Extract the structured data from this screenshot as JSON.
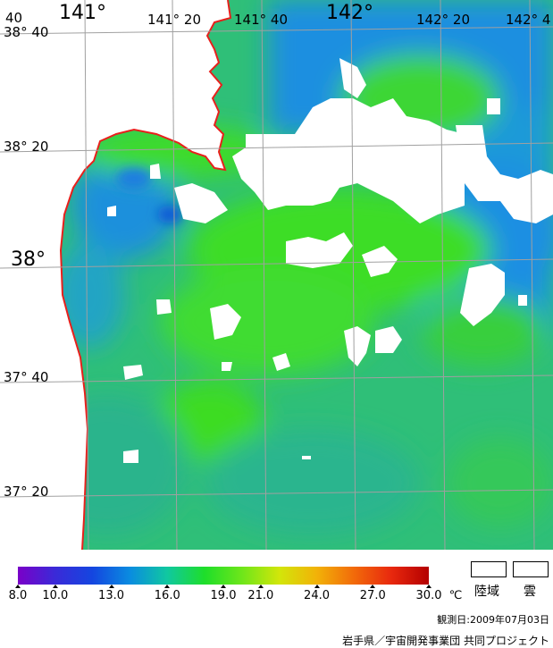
{
  "map": {
    "lat_labels": [
      {
        "text": "38° 40",
        "class": "lbl-small"
      },
      {
        "text": "38° 20",
        "class": "lbl-small"
      },
      {
        "text": "38°",
        "class": "lbl-big"
      },
      {
        "text": "37° 40",
        "class": "lbl-small"
      },
      {
        "text": "37° 20",
        "class": "lbl-small"
      }
    ],
    "lon_labels": [
      {
        "text": "40",
        "class": "lbl-small"
      },
      {
        "text": "141°",
        "class": "lbl-big"
      },
      {
        "text": "141° 20",
        "class": "lbl-small"
      },
      {
        "text": "141° 40",
        "class": "lbl-small"
      },
      {
        "text": "142°",
        "class": "lbl-big"
      },
      {
        "text": "142° 20",
        "class": "lbl-small"
      },
      {
        "text": "142° 4",
        "class": "lbl-small"
      }
    ],
    "coast_color": "#e8201c",
    "cloud_color": "#ffffff",
    "grid_color": "#a0a0a0"
  },
  "legend": {
    "ticks": [
      "8.0",
      "10.0",
      "13.0",
      "16.0",
      "19.0",
      "21.0",
      "24.0",
      "27.0",
      "30.0"
    ],
    "tick_values": [
      8,
      10,
      13,
      16,
      19,
      21,
      24,
      27,
      30
    ],
    "unit": "℃",
    "land_label": "陸域",
    "cloud_label": "雲",
    "colors": [
      "#7a00c8",
      "#3a2ad8",
      "#1446e0",
      "#0a8ce0",
      "#10c8a0",
      "#1ede2a",
      "#6ee61a",
      "#d2e60a",
      "#f2b208",
      "#f26a0a",
      "#e8280e",
      "#b40000"
    ]
  },
  "observation_date": "観測日:2009年07月03日",
  "credit": "岩手県／宇宙開発事業団 共同プロジェクト"
}
